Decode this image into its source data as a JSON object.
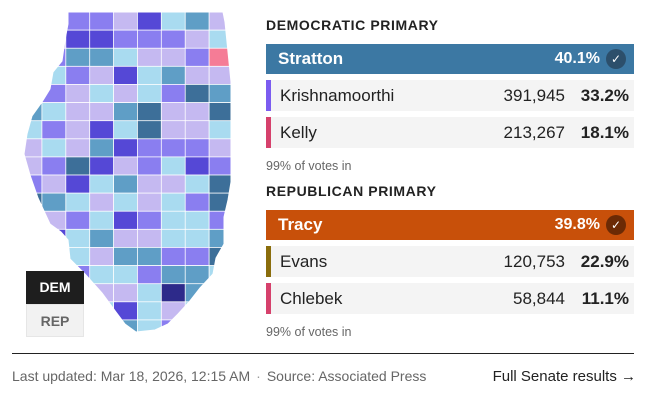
{
  "map": {
    "colors": {
      "light_blue": "#a9dbf0",
      "mid_blue": "#5f9ec6",
      "dark_blue": "#3d6f99",
      "lavender": "#c5b9f1",
      "purple": "#8a7ef0",
      "dark_purple": "#5548d6",
      "navy": "#2d2a8a",
      "pink": "#f57c96",
      "missing": "#dddddd"
    },
    "toggle": {
      "dem_label": "DEM",
      "rep_label": "REP",
      "active": "DEM"
    }
  },
  "democratic": {
    "title": "DEMOCRATIC PRIMARY",
    "winner": {
      "name": "Stratton",
      "pct": "40.1%",
      "color": "#3c78a3",
      "check_color": "#2c4f6b"
    },
    "candidates": [
      {
        "name": "Krishnamoorthi",
        "votes": "391,945",
        "pct": "33.2%",
        "color": "#7b5cf0"
      },
      {
        "name": "Kelly",
        "votes": "213,267",
        "pct": "18.1%",
        "color": "#d6416c"
      }
    ],
    "reporting": "99% of votes in"
  },
  "republican": {
    "title": "REPUBLICAN PRIMARY",
    "winner": {
      "name": "Tracy",
      "pct": "39.8%",
      "color": "#c8500a",
      "check_color": "#6b2a05"
    },
    "candidates": [
      {
        "name": "Evans",
        "votes": "120,753",
        "pct": "22.9%",
        "color": "#8a6d0c"
      },
      {
        "name": "Chlebek",
        "votes": "58,844",
        "pct": "11.1%",
        "color": "#d6416c"
      }
    ],
    "reporting": "99% of votes in"
  },
  "footer": {
    "updated": "Last updated: Mar 18, 2026, 12:15 AM",
    "separator": "·",
    "source": "Source: Associated Press",
    "link": "Full Senate results →"
  }
}
